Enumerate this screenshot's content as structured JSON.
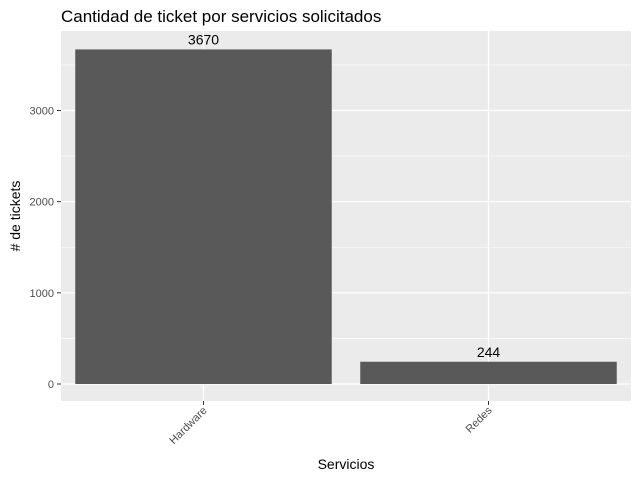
{
  "chart_data": {
    "type": "bar",
    "title": "Cantidad de ticket por servicios solicitados",
    "xlabel": "Servicios",
    "ylabel": "# de tickets",
    "categories": [
      "Hardware",
      "Redes"
    ],
    "values": [
      3670,
      244
    ],
    "data_labels": [
      "3670",
      "244"
    ],
    "yticks": [
      0,
      1000,
      2000,
      3000
    ],
    "ylim": [
      0,
      3870
    ],
    "grid": true,
    "colors": {
      "bar": "#595959",
      "panel": "#ebebeb",
      "grid": "#ffffff"
    }
  }
}
